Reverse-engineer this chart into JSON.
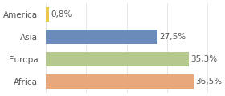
{
  "categories": [
    "America",
    "Asia",
    "Europa",
    "Africa"
  ],
  "values": [
    0.8,
    27.5,
    35.3,
    36.5
  ],
  "labels": [
    "0,8%",
    "27,5%",
    "35,3%",
    "36,5%"
  ],
  "bar_colors": [
    "#e8c84a",
    "#6b8cba",
    "#b5c98e",
    "#e8a87c"
  ],
  "background_color": "#ffffff",
  "xlim": [
    0,
    42
  ],
  "label_fontsize": 7.5,
  "tick_fontsize": 7.5
}
